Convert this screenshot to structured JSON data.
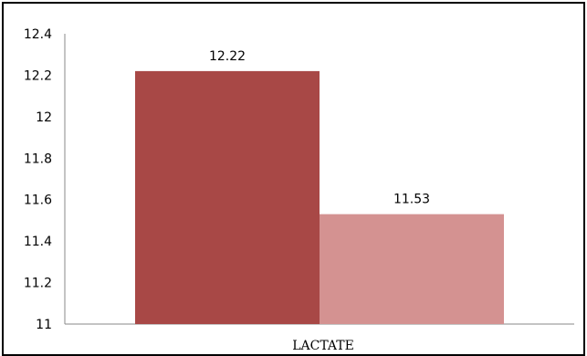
{
  "chart_data": {
    "type": "bar",
    "categories": [
      "LACTATE"
    ],
    "series": [
      {
        "values": [
          12.22
        ],
        "color": "#A84846"
      },
      {
        "values": [
          11.53
        ],
        "color": "#D49291"
      }
    ],
    "data_labels": [
      "12.22",
      "11.53"
    ],
    "title": "",
    "xlabel": "",
    "ylabel": "",
    "ylim": [
      11,
      12.4
    ],
    "yticks": [
      "11",
      "11.2",
      "11.4",
      "11.6",
      "11.8",
      "12",
      "12.2",
      "12.4"
    ],
    "grid": false,
    "legend": "none"
  }
}
